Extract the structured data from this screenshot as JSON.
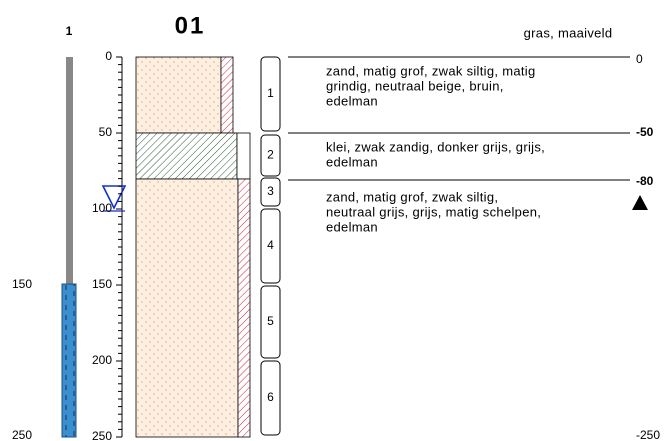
{
  "header": {
    "borehole_id": "01",
    "well_id": "1",
    "surface": "gras, maaiveld"
  },
  "well_depths": [
    "150",
    "250"
  ],
  "depth_scale": [
    "0",
    "50",
    "100",
    "150",
    "200",
    "250"
  ],
  "layers": [
    {
      "lines": [
        "zand, matig grof, zwak siltig, matig",
        "grindig, neutraal beige, bruin,",
        "edelman"
      ]
    },
    {
      "lines": [
        "klei, zwak zandig, donker grijs, grijs,",
        "edelman"
      ]
    },
    {
      "lines": [
        "zand, matig grof, zwak siltig,",
        "neutraal grijs, grijs, matig schelpen,",
        "edelman"
      ]
    }
  ],
  "samples": [
    "1",
    "2",
    "3",
    "4",
    "5",
    "6"
  ],
  "levels": [
    "0",
    "-50",
    "-80",
    "-250"
  ]
}
